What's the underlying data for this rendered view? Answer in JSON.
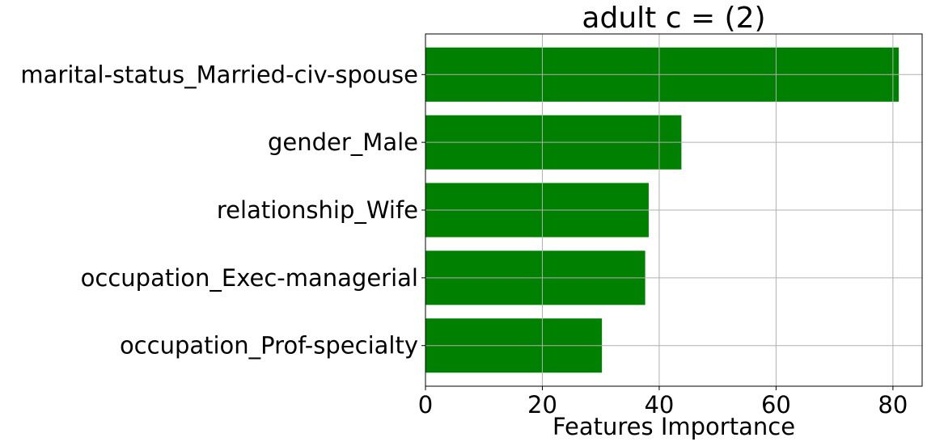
{
  "chart_data": {
    "type": "bar",
    "orientation": "horizontal",
    "title": "adult c = (2)",
    "xlabel": "Features Importance",
    "ylabel": "",
    "categories": [
      "marital-status_Married-civ-spouse",
      "gender_Male",
      "relationship_Wife",
      "occupation_Exec-managerial",
      "occupation_Prof-specialty"
    ],
    "values": [
      81,
      43.8,
      38.2,
      37.6,
      30.2
    ],
    "xlim": [
      0,
      85
    ],
    "xticks": [
      0,
      20,
      40,
      60,
      80
    ],
    "xtick_labels": [
      "0",
      "20",
      "40",
      "60",
      "80"
    ],
    "grid": true,
    "bar_color": "#008000",
    "grid_color": "#b0b0b0"
  }
}
